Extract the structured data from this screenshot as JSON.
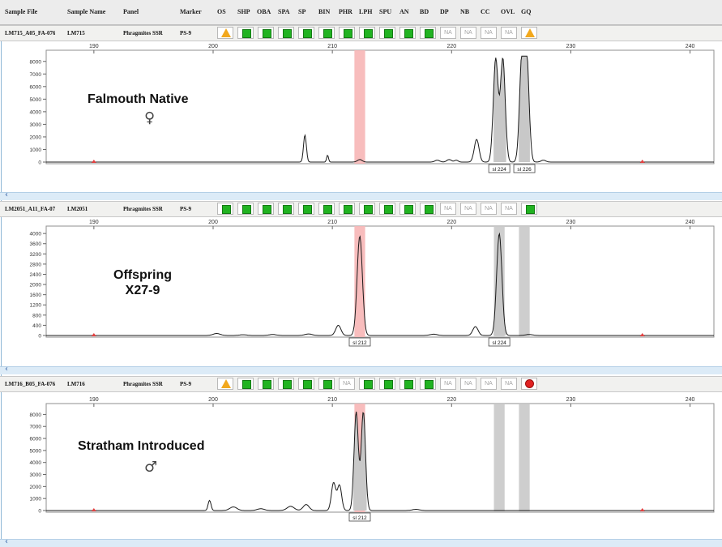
{
  "columns": [
    "Sample File",
    "Sample Name",
    "Panel",
    "Marker",
    "OS",
    "SHP",
    "OBA",
    "SPA",
    "SP",
    "BIN",
    "PHR",
    "LPH",
    "SPU",
    "AN",
    "BD",
    "DP",
    "NB",
    "CC",
    "OVL",
    "GQ"
  ],
  "colors": {
    "green": "#21b321",
    "warning": "#f2a81d",
    "error": "#e02222",
    "bin_highlight": "#f7b6b6",
    "bin_gray": "#c9c9c9",
    "peak_fill": "#c8c8c8",
    "baseline_marker": "#e34141"
  },
  "rows": [
    {
      "sample_file": "LM715_A05_FA-076",
      "sample_name": "LM715",
      "panel": "Phragmites SSR",
      "marker": "PS-9",
      "flags": [
        "warning",
        "green",
        "green",
        "green",
        "green",
        "green",
        "green",
        "green",
        "green",
        "green",
        "green",
        "NA",
        "NA",
        "NA",
        "NA",
        "warning"
      ],
      "label": "Falmouth Native",
      "symbol": "♀",
      "symbol_name": "female-symbol-icon",
      "peak_labels": [
        "sl 224",
        "sl 226"
      ]
    },
    {
      "sample_file": "LM2051_A11_FA-07",
      "sample_name": "LM2051",
      "panel": "Phragmites SSR",
      "marker": "PS-9",
      "flags": [
        "green",
        "green",
        "green",
        "green",
        "green",
        "green",
        "green",
        "green",
        "green",
        "green",
        "green",
        "NA",
        "NA",
        "NA",
        "NA",
        "green"
      ],
      "label": "Offspring\nX27-9",
      "symbol": "",
      "symbol_name": "",
      "peak_labels": [
        "sl 212",
        "sl 224"
      ]
    },
    {
      "sample_file": "LM716_B05_FA-076",
      "sample_name": "LM716",
      "panel": "Phragmites SSR",
      "marker": "PS-9",
      "flags": [
        "warning",
        "green",
        "green",
        "green",
        "green",
        "green",
        "NA",
        "green",
        "green",
        "green",
        "green",
        "NA",
        "NA",
        "NA",
        "NA",
        "error"
      ],
      "label": "Stratham Introduced",
      "symbol": "♂",
      "symbol_name": "male-symbol-icon",
      "peak_labels": [
        "sl 212"
      ]
    }
  ],
  "chart_data": [
    {
      "type": "line",
      "x_ticks": [
        190,
        200,
        210,
        220,
        230,
        240
      ],
      "xlim": [
        186,
        242
      ],
      "ylim": [
        0,
        8500
      ],
      "y_ticks": [
        0,
        1000,
        2000,
        3000,
        4000,
        5000,
        6000,
        7000,
        8000
      ],
      "bin_highlights": [
        {
          "x": 212.3,
          "width": 0.9,
          "kind": "pink"
        }
      ],
      "peaks": [
        {
          "x": 207.7,
          "height": 2150,
          "width": 0.12
        },
        {
          "x": 209.6,
          "height": 550,
          "width": 0.08
        },
        {
          "x": 212.3,
          "height": 200,
          "width": 0.2
        },
        {
          "x": 218.8,
          "height": 150,
          "width": 0.2
        },
        {
          "x": 219.8,
          "height": 200,
          "width": 0.2
        },
        {
          "x": 220.4,
          "height": 150,
          "width": 0.15
        },
        {
          "x": 222.1,
          "height": 1800,
          "width": 0.2
        },
        {
          "x": 223.7,
          "height": 8200,
          "width": 0.2
        },
        {
          "x": 224.3,
          "height": 8200,
          "width": 0.2
        },
        {
          "x": 225.9,
          "height": 8200,
          "width": 0.2
        },
        {
          "x": 226.3,
          "height": 8200,
          "width": 0.2
        },
        {
          "x": 227.7,
          "height": 150,
          "width": 0.2
        }
      ],
      "shaded_peaks": [
        [
          223.5,
          224.6
        ],
        [
          225.6,
          226.6
        ]
      ],
      "peak_label_x": [
        224.0,
        226.1
      ],
      "baseline_markers": [
        190,
        236
      ]
    },
    {
      "type": "line",
      "x_ticks": [
        190,
        200,
        210,
        220,
        230,
        240
      ],
      "xlim": [
        186,
        242
      ],
      "ylim": [
        0,
        4100
      ],
      "y_ticks": [
        0,
        400,
        800,
        1200,
        1600,
        2000,
        2400,
        2800,
        3200,
        3600,
        4000
      ],
      "bin_highlights": [
        {
          "x": 212.3,
          "width": 0.9,
          "kind": "pink"
        },
        {
          "x": 224.0,
          "width": 0.9,
          "kind": "gray"
        },
        {
          "x": 226.1,
          "width": 0.9,
          "kind": "gray"
        }
      ],
      "peaks": [
        {
          "x": 200.3,
          "height": 80,
          "width": 0.3
        },
        {
          "x": 202.5,
          "height": 30,
          "width": 0.3
        },
        {
          "x": 205.0,
          "height": 40,
          "width": 0.3
        },
        {
          "x": 208.0,
          "height": 60,
          "width": 0.3
        },
        {
          "x": 210.5,
          "height": 400,
          "width": 0.22
        },
        {
          "x": 212.3,
          "height": 3900,
          "width": 0.22
        },
        {
          "x": 218.5,
          "height": 50,
          "width": 0.3
        },
        {
          "x": 222.0,
          "height": 350,
          "width": 0.22
        },
        {
          "x": 224.0,
          "height": 4000,
          "width": 0.22
        },
        {
          "x": 226.5,
          "height": 40,
          "width": 0.3
        }
      ],
      "shaded_peaks": [
        [
          223.5,
          224.6
        ]
      ],
      "peak_label_x": [
        212.3,
        224.0
      ],
      "baseline_markers": [
        190,
        236
      ]
    },
    {
      "type": "line",
      "x_ticks": [
        190,
        200,
        210,
        220,
        230,
        240
      ],
      "xlim": [
        186,
        242
      ],
      "ylim": [
        0,
        8500
      ],
      "y_ticks": [
        0,
        1000,
        2000,
        3000,
        4000,
        5000,
        6000,
        7000,
        8000
      ],
      "bin_highlights": [
        {
          "x": 212.3,
          "width": 0.9,
          "kind": "pink"
        },
        {
          "x": 224.0,
          "width": 0.9,
          "kind": "gray"
        },
        {
          "x": 226.1,
          "width": 0.9,
          "kind": "gray"
        }
      ],
      "peaks": [
        {
          "x": 199.7,
          "height": 850,
          "width": 0.12
        },
        {
          "x": 201.7,
          "height": 300,
          "width": 0.3
        },
        {
          "x": 204.0,
          "height": 150,
          "width": 0.3
        },
        {
          "x": 206.5,
          "height": 350,
          "width": 0.3
        },
        {
          "x": 207.8,
          "height": 500,
          "width": 0.25
        },
        {
          "x": 210.1,
          "height": 2300,
          "width": 0.18
        },
        {
          "x": 210.6,
          "height": 2100,
          "width": 0.18
        },
        {
          "x": 212.0,
          "height": 8200,
          "width": 0.18
        },
        {
          "x": 212.6,
          "height": 8200,
          "width": 0.18
        },
        {
          "x": 217.0,
          "height": 100,
          "width": 0.3
        }
      ],
      "shaded_peaks": [
        [
          211.7,
          212.9
        ]
      ],
      "peak_label_x": [
        212.3
      ],
      "baseline_markers": [
        190,
        236
      ]
    }
  ]
}
